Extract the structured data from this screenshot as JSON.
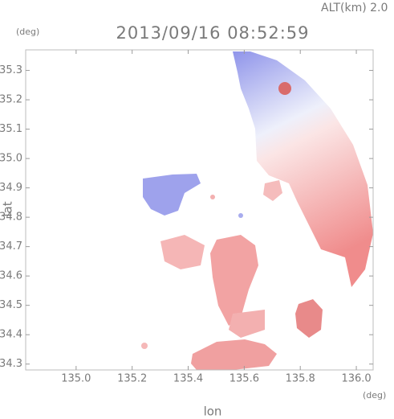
{
  "chart_data": {
    "type": "radar-field",
    "title": "2013/09/16 08:52:59",
    "subtitle": "ALT(km) 2.0",
    "x_label": "lon",
    "y_label": "lat",
    "x_unit": "(deg)",
    "y_unit": "(deg)",
    "xlim": [
      134.82,
      136.06
    ],
    "ylim": [
      34.28,
      35.37
    ],
    "xticks": [
      {
        "value": 135.0,
        "label": "135.0"
      },
      135.2,
      135.4,
      135.6,
      135.8,
      {
        "value": 136.0,
        "label": "136.0"
      }
    ],
    "yticks": [
      34.3,
      34.4,
      34.5,
      34.6,
      34.7,
      34.8,
      34.9,
      {
        "value": 35.0,
        "label": "35.0"
      },
      35.1,
      35.2,
      35.3
    ]
  }
}
